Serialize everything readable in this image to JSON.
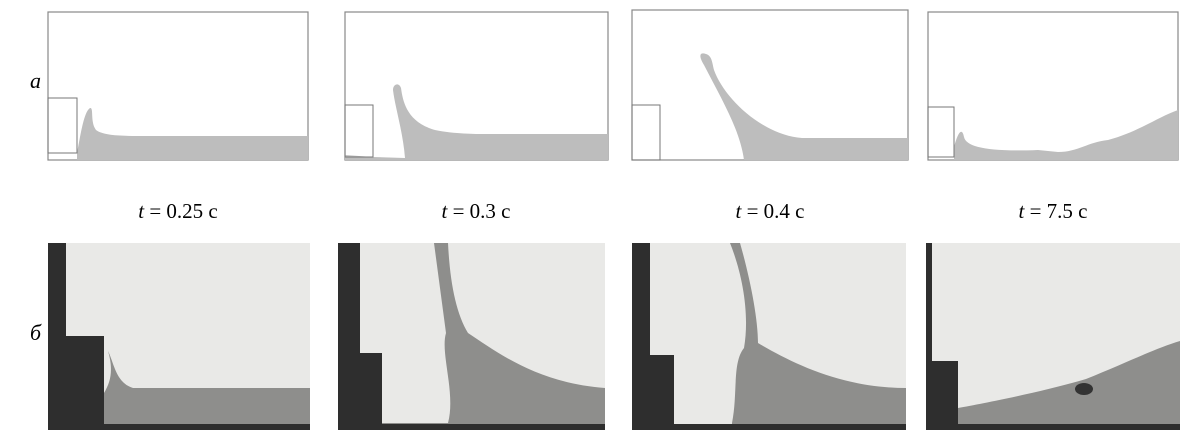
{
  "rows": [
    {
      "label": "а"
    },
    {
      "label": "б"
    }
  ],
  "time_variable": "t",
  "times": [
    "= 0.25 с",
    "= 0.3 с",
    "= 0.4 с",
    "= 7.5 с"
  ]
}
